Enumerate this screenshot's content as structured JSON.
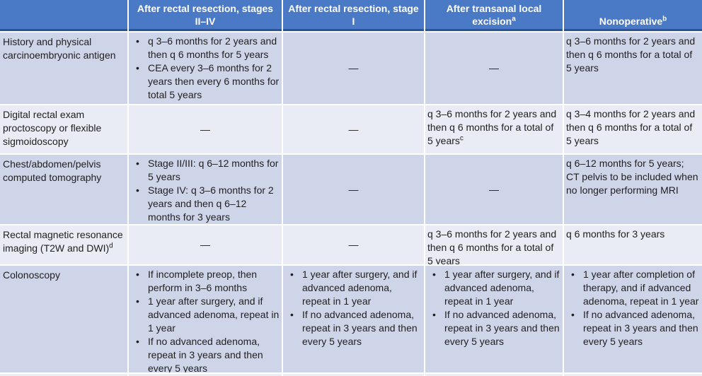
{
  "colors": {
    "header_bg": "#4A79C5",
    "header_border": "#2E5395",
    "header_text": "#FFFFFF",
    "band_dark": "#CFD5E9",
    "band_light": "#E9EBF5",
    "body_text": "#1F1F1F",
    "divider": "#FFFFFF"
  },
  "header": {
    "corner": "",
    "col1": "After rectal resection, stages II–IV",
    "col2": "After rectal resection, stage I",
    "col3": "After transanal local excision",
    "col3_sup": "a",
    "col4": "Nonoperative",
    "col4_sup": "b"
  },
  "rows": [
    {
      "label": "History and physical carcinoembryonic antigen",
      "c1": [
        "q 3–6 months for 2 years and then q 6 months for 5 years",
        "CEA every 3–6 months for 2 years then every 6 months for total 5 years"
      ],
      "c2": "—",
      "c3": "—",
      "c4": "q 3–6 months for 2 years and then q 6 months for a total of 5 years"
    },
    {
      "label": "Digital rectal exam proctoscopy or flexible sigmoidoscopy",
      "c1": "—",
      "c2": "—",
      "c3": "q 3–6 months for 2 years and then q 6 months for a total of 5 years",
      "c3_sup": "c",
      "c4": "q 3–4 months for 2 years and then q 6 months for a total of 5 years"
    },
    {
      "label": "Chest/abdomen/pelvis computed tomography",
      "c1": [
        "Stage II/III: q 6–12 months for 5 years",
        "Stage IV: q 3–6 months for 2 years and then q 6–12 months for 3 years"
      ],
      "c2": "—",
      "c3": "—",
      "c4": "q 6–12 months for 5 years; CT pelvis to be included when no longer performing MRI"
    },
    {
      "label": "Rectal magnetic resonance imaging (T2W and DWI)",
      "label_sup": "d",
      "c1": "—",
      "c2": "—",
      "c3": "q 3–6 months for 2 years and then q 6 months for a total of 5 years",
      "c4": "q 6 months for 3 years"
    },
    {
      "label": "Colonoscopy",
      "c1": [
        "If incomplete preop, then perform in 3–6 months",
        "1 year after surgery, and if advanced adenoma, repeat in 1 year",
        "If no advanced adenoma, repeat in 3 years and then every 5 years"
      ],
      "c2": [
        "1 year after surgery, and if advanced adenoma, repeat in 1 year",
        "If no advanced adenoma, repeat in 3 years and then every 5 years"
      ],
      "c3": [
        "1 year after surgery, and if advanced adenoma, repeat in 1 year",
        "If no advanced adenoma, repeat in 3 years and then every 5 years"
      ],
      "c4": [
        "1 year after completion of therapy, and if advanced adenoma, repeat in 1 year",
        "If no advanced adenoma, repeat in 3 years and then every 5 years"
      ]
    }
  ]
}
